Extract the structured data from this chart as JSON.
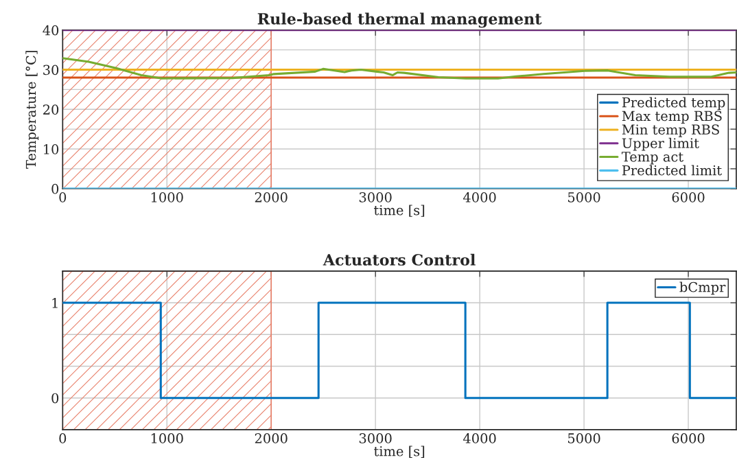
{
  "chart_data": [
    {
      "type": "line",
      "title": "Rule-based thermal management",
      "xlabel": "time [s]",
      "ylabel": "Temperature [°C]",
      "xlim": [
        0,
        6460
      ],
      "xticks": [
        0,
        1000,
        2000,
        3000,
        4000,
        5000,
        6000
      ],
      "ylim": [
        0,
        40
      ],
      "yticks": [
        0,
        {
          "value": 5,
          "label": null
        },
        10,
        {
          "value": 15,
          "label": null
        },
        20,
        {
          "value": 25,
          "label": null
        },
        30,
        {
          "value": 35,
          "label": null
        },
        40
      ],
      "grid": true,
      "legend": "lower right",
      "bands": [
        {
          "axis": "x",
          "from": 0,
          "to": 2000,
          "color": "#e8806a"
        }
      ],
      "series": [
        {
          "name": "Predicted temp",
          "color": "#0072bd"
        },
        {
          "name": "Max temp RBS",
          "color": "#d95319",
          "x": [
            0,
            6460
          ],
          "values": [
            28,
            28
          ]
        },
        {
          "name": "Min temp RBS",
          "color": "#edb120",
          "x": [
            0,
            6460
          ],
          "values": [
            30,
            30
          ]
        },
        {
          "name": "Upper limit",
          "color": "#7e2f8e",
          "x": [
            0,
            6460
          ],
          "values": [
            40,
            40
          ]
        },
        {
          "name": "Temp act",
          "color": "#77ac30",
          "x": [
            0,
            250,
            513,
            754,
            952,
            1632,
            1980,
            2026,
            2421,
            2498,
            2704,
            2770,
            2860,
            3013,
            3079,
            3164,
            3211,
            3276,
            3605,
            3868,
            4175,
            4349,
            4612,
            5007,
            5228,
            5491,
            5820,
            6215,
            6390,
            6460
          ],
          "values": [
            32.9,
            32.0,
            30.4,
            28.6,
            27.8,
            27.9,
            28.6,
            28.9,
            29.5,
            30.2,
            29.4,
            29.8,
            30.0,
            29.5,
            29.3,
            28.6,
            29.3,
            29.2,
            28.1,
            27.8,
            27.8,
            28.3,
            28.9,
            29.7,
            29.8,
            28.6,
            28.2,
            28.2,
            29.2,
            29.3
          ]
        },
        {
          "name": "Predicted limit",
          "color": "#4dbeee",
          "x": [
            0,
            6460
          ],
          "values": [
            0,
            0
          ]
        }
      ]
    },
    {
      "type": "step",
      "title": "Actuators Control",
      "xlabel": "time [s]",
      "xlim": [
        0,
        6460
      ],
      "xticks": [
        0,
        1000,
        2000,
        3000,
        4000,
        5000,
        6000
      ],
      "ylim": [
        -0.333,
        1.333
      ],
      "yticks": [
        {
          "value": -0.333,
          "label": null
        },
        0,
        {
          "value": 0.333,
          "label": null
        },
        {
          "value": 0.667,
          "label": null
        },
        1,
        {
          "value": 1.333,
          "label": null
        }
      ],
      "grid": true,
      "legend": "upper right",
      "bands": [
        {
          "axis": "x",
          "from": 0,
          "to": 2000,
          "color": "#e8806a"
        }
      ],
      "series": [
        {
          "name": "bCmpr",
          "color": "#0072bd",
          "x": [
            0,
            941,
            2454,
            3862,
            5224,
            6015,
            6460
          ],
          "values": [
            1,
            0,
            1,
            0,
            1,
            0,
            0
          ]
        }
      ]
    }
  ]
}
